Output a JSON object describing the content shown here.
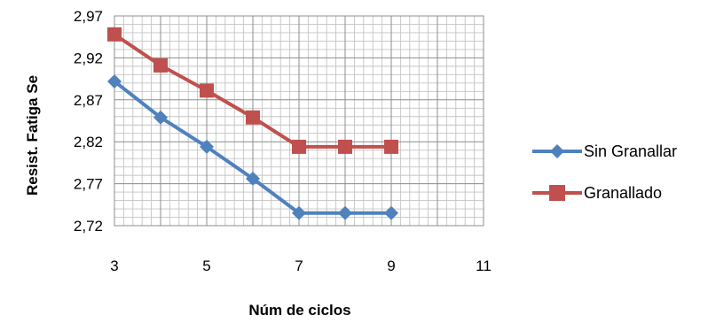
{
  "chart_data": {
    "type": "line",
    "title": "",
    "xlabel": "Núm de ciclos",
    "ylabel": "Resist. Fatiga Se",
    "xlim": [
      3,
      11
    ],
    "ylim": [
      2.72,
      2.97
    ],
    "x_ticks": [
      "3",
      "5",
      "7",
      "9",
      "11"
    ],
    "y_ticks": [
      "2,72",
      "2,77",
      "2,82",
      "2,87",
      "2,92",
      "2,97"
    ],
    "grid": true,
    "legend_position": "right",
    "series": [
      {
        "name": "Sin Granallar",
        "color": "#4f81bd",
        "marker": "diamond",
        "x": [
          3,
          4,
          5,
          6,
          7,
          8,
          9
        ],
        "y": [
          2.892,
          2.849,
          2.814,
          2.776,
          2.735,
          2.735,
          2.735
        ]
      },
      {
        "name": "Granallado",
        "color": "#c0504d",
        "marker": "square",
        "x": [
          3,
          4,
          5,
          6,
          7,
          8,
          9
        ],
        "y": [
          2.948,
          2.911,
          2.881,
          2.849,
          2.814,
          2.814,
          2.814
        ]
      }
    ]
  }
}
